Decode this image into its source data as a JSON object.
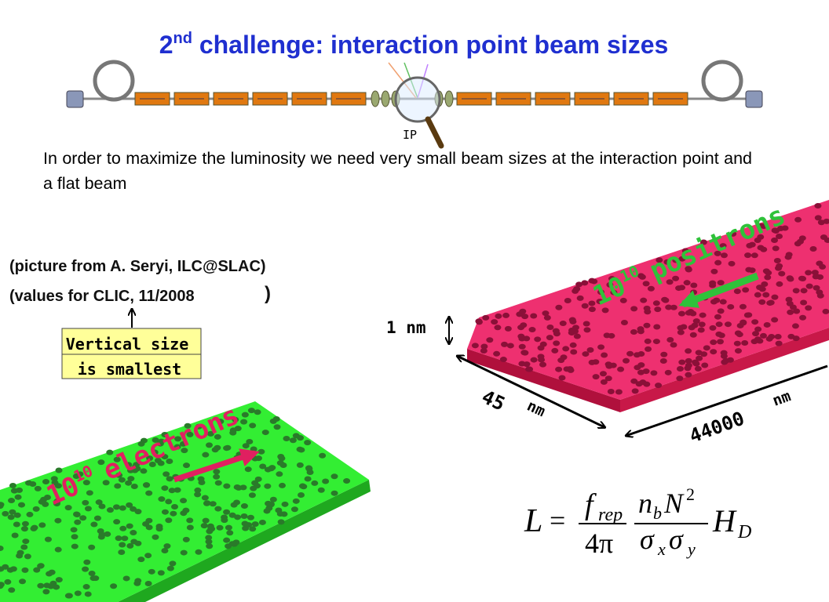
{
  "title": {
    "main": "2",
    "sup": "nd",
    "rest": " challenge: interaction point beam sizes"
  },
  "ip_label": "IP",
  "body": "In order to maximize the luminosity we need very small beam sizes at the interaction point and a flat beam",
  "credits": {
    "picture": "(picture from A. Seryi, ILC@SLAC)",
    "values": "(values for CLIC, 11/2008",
    "close": ")"
  },
  "callout": [
    "Vertical size",
    "is smallest"
  ],
  "positrons": {
    "base": "10",
    "exp": "10",
    "word": "positrons"
  },
  "electrons": {
    "base": "10",
    "exp": "10",
    "word": "electrons"
  },
  "dimensions": {
    "vertical": "1 nm",
    "width_value": "45",
    "width_unit": "nm",
    "length_value": "44000",
    "length_unit": "nm"
  },
  "formula": {
    "lhs": "L",
    "eq": "=",
    "f": "f",
    "rep": "rep",
    "four_pi": "4π",
    "n": "n",
    "b": "b",
    "N": "N",
    "sq": "2",
    "sx": "σ",
    "x": "x",
    "sy": "σ",
    "y": "y",
    "H": "H",
    "D": "D"
  }
}
